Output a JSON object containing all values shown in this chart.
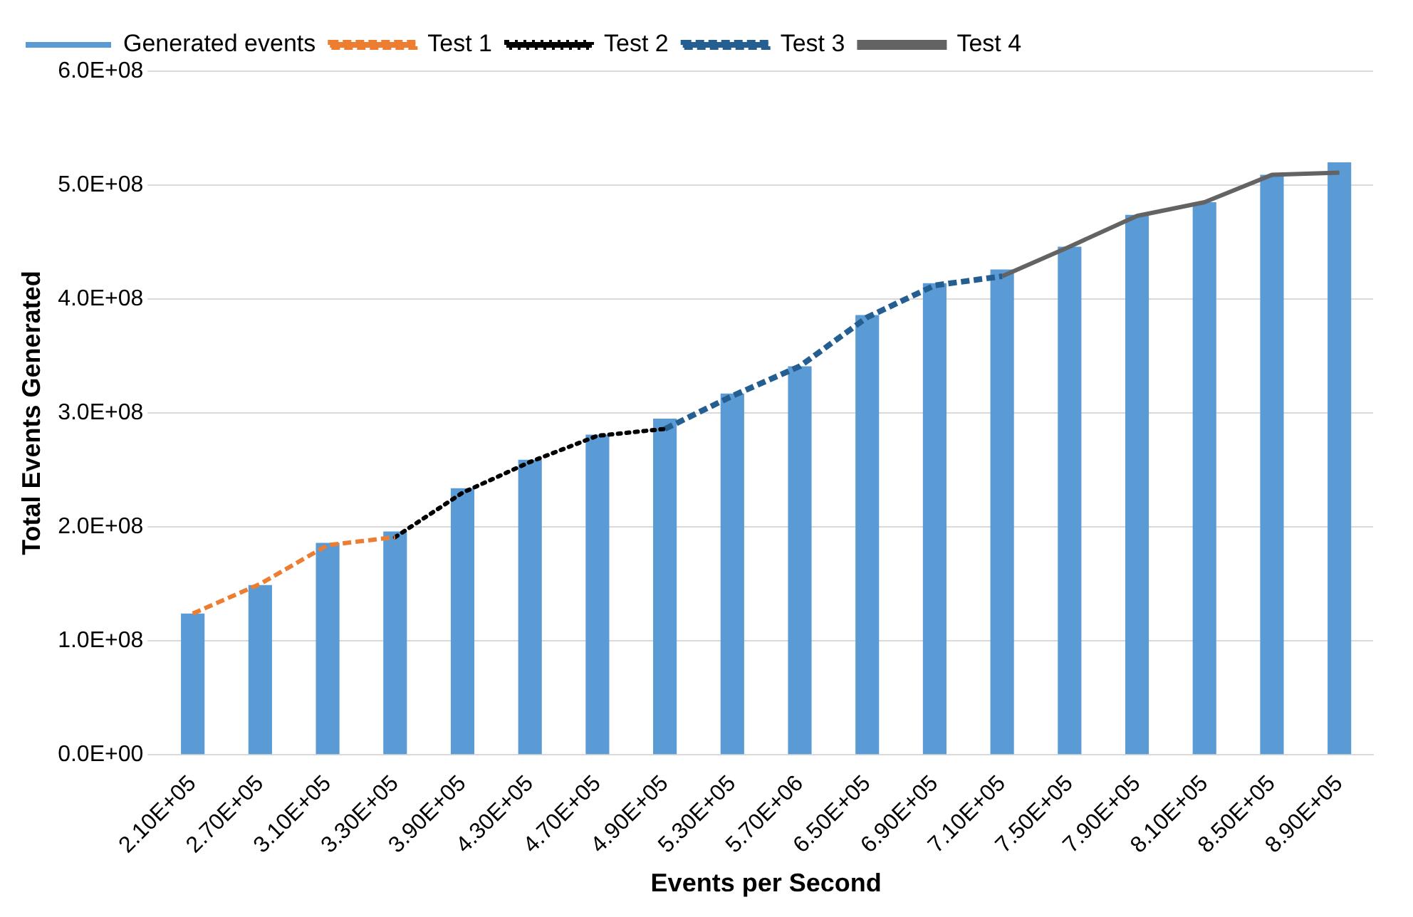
{
  "chart_data": {
    "type": "bar",
    "xlabel": "Events per Second",
    "ylabel": "Total Events Generated",
    "categories": [
      "2.10E+05",
      "2.70E+05",
      "3.10E+05",
      "3.30E+05",
      "3.90E+05",
      "4.30E+05",
      "4.70E+05",
      "4.90E+05",
      "5.30E+05",
      "5.70E+06",
      "6.50E+05",
      "6.90E+05",
      "7.10E+05",
      "7.50E+05",
      "7.90E+05",
      "8.10E+05",
      "8.50E+05",
      "8.90E+05"
    ],
    "series": [
      {
        "name": "Generated events",
        "color": "#5b9bd5",
        "values": [
          124000000,
          149000000,
          186000000,
          196000000,
          234000000,
          259000000,
          281000000,
          295000000,
          317000000,
          341000000,
          386000000,
          414000000,
          426000000,
          446000000,
          474000000,
          485000000,
          509000000,
          520000000
        ]
      },
      {
        "name": "Test 1",
        "type": "line",
        "color": "#ed7d31",
        "line_style": "dashed",
        "values": [
          124000000,
          150000000,
          184000000,
          191000000,
          null,
          null,
          null,
          null,
          null,
          null,
          null,
          null,
          null,
          null,
          null,
          null,
          null,
          null
        ]
      },
      {
        "name": "Test 2",
        "type": "line",
        "color": "#000000",
        "line_style": "dotted",
        "values": [
          null,
          null,
          null,
          191000000,
          230000000,
          257000000,
          280000000,
          286000000,
          null,
          null,
          null,
          null,
          null,
          null,
          null,
          null,
          null,
          null
        ]
      },
      {
        "name": "Test 3",
        "type": "line",
        "color": "#255e91",
        "line_style": "dashed",
        "values": [
          null,
          null,
          null,
          null,
          null,
          null,
          null,
          286000000,
          315000000,
          341000000,
          384000000,
          412000000,
          420000000,
          null,
          null,
          null,
          null,
          null
        ]
      },
      {
        "name": "Test 4",
        "type": "line",
        "color": "#636363",
        "line_style": "solid",
        "values": [
          null,
          null,
          null,
          null,
          null,
          null,
          null,
          null,
          null,
          null,
          null,
          null,
          420000000,
          446000000,
          473000000,
          485000000,
          509000000,
          511000000
        ]
      }
    ],
    "ylim": [
      0,
      600000000
    ],
    "yticks": [
      {
        "value": 0,
        "label": "0.0E+00"
      },
      {
        "value": 100000000,
        "label": "1.0E+08"
      },
      {
        "value": 200000000,
        "label": "2.0E+08"
      },
      {
        "value": 300000000,
        "label": "3.0E+08"
      },
      {
        "value": 400000000,
        "label": "4.0E+08"
      },
      {
        "value": 500000000,
        "label": "5.0E+08"
      },
      {
        "value": 600000000,
        "label": "6.0E+08"
      }
    ],
    "grid": "y",
    "legend": "top left",
    "marker": "none"
  }
}
